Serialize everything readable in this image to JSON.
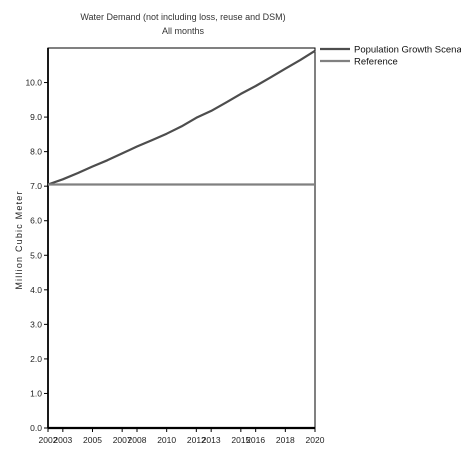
{
  "chart_data": {
    "type": "line",
    "title": "Water Demand (not including loss, reuse and DSM)",
    "subtitle": "All months",
    "xlabel": "",
    "ylabel": "Million Cubic Meter",
    "x": [
      2002,
      2003,
      2004,
      2005,
      2006,
      2007,
      2008,
      2009,
      2010,
      2011,
      2012,
      2013,
      2014,
      2015,
      2016,
      2017,
      2018,
      2019,
      2020
    ],
    "x_tick_labels": [
      "2002",
      "2003",
      "2005",
      "2007",
      "2008",
      "2010",
      "2012",
      "2013",
      "2015",
      "2016",
      "2018",
      "2020"
    ],
    "ylim": [
      0,
      11
    ],
    "y_ticks": [
      "0.0",
      "1.0",
      "2.0",
      "3.0",
      "4.0",
      "5.0",
      "6.0",
      "7.0",
      "8.0",
      "9.0",
      "10.0"
    ],
    "grid": false,
    "legend_position": "top-right",
    "series": [
      {
        "name": "Population Growth Scenario",
        "color": "#4d4d4d",
        "values": [
          7.05,
          7.2,
          7.38,
          7.57,
          7.75,
          7.95,
          8.15,
          8.33,
          8.52,
          8.73,
          8.98,
          9.18,
          9.42,
          9.67,
          9.9,
          10.15,
          10.4,
          10.65,
          10.92
        ]
      },
      {
        "name": "Reference",
        "color": "#808080",
        "values": [
          7.05,
          7.05,
          7.05,
          7.05,
          7.05,
          7.05,
          7.05,
          7.05,
          7.05,
          7.05,
          7.05,
          7.05,
          7.05,
          7.05,
          7.05,
          7.05,
          7.05,
          7.05,
          7.05
        ]
      }
    ]
  }
}
